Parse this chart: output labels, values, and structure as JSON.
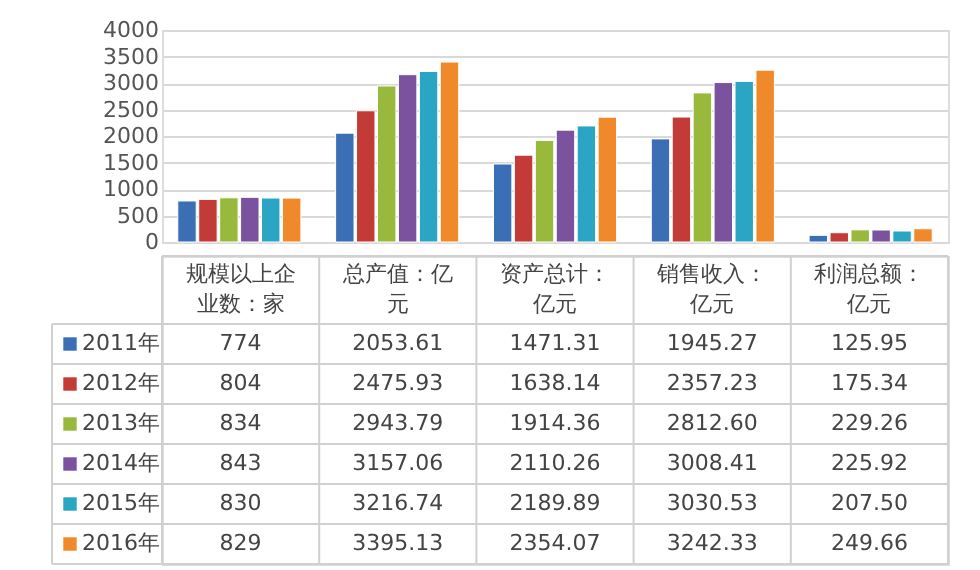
{
  "chart_data": {
    "type": "bar",
    "categories": [
      "规模以上企业数：家",
      "总产值：亿元",
      "资产总计：亿元",
      "销售收入：亿元",
      "利润总额：亿元"
    ],
    "ylim": [
      0,
      4000
    ],
    "yticks": [
      0,
      500,
      1000,
      1500,
      2000,
      2500,
      3000,
      3500,
      4000
    ],
    "grid": "y",
    "legend": "bottom",
    "series": [
      {
        "name": "2011年",
        "color": "#3a6fb5",
        "values": [
          774,
          2053.61,
          1471.31,
          1945.27,
          125.95
        ],
        "value_labels": [
          "774",
          "2053.61",
          "1471.31",
          "1945.27",
          "125.95"
        ]
      },
      {
        "name": "2012年",
        "color": "#c23b36",
        "values": [
          804,
          2475.93,
          1638.14,
          2357.23,
          175.34
        ],
        "value_labels": [
          "804",
          "2475.93",
          "1638.14",
          "2357.23",
          "175.34"
        ]
      },
      {
        "name": "2013年",
        "color": "#98b93c",
        "values": [
          834,
          2943.79,
          1914.36,
          2812.6,
          229.26
        ],
        "value_labels": [
          "834",
          "2943.79",
          "1914.36",
          "2812.60",
          "229.26"
        ]
      },
      {
        "name": "2014年",
        "color": "#7a529e",
        "values": [
          843,
          3157.06,
          2110.26,
          3008.41,
          225.92
        ],
        "value_labels": [
          "843",
          "3157.06",
          "2110.26",
          "3008.41",
          "225.92"
        ]
      },
      {
        "name": "2015年",
        "color": "#2aa5c4",
        "values": [
          830,
          3216.74,
          2189.89,
          3030.53,
          207.5
        ],
        "value_labels": [
          "830",
          "3216.74",
          "2189.89",
          "3030.53",
          "207.50"
        ]
      },
      {
        "name": "2016年",
        "color": "#f0892a",
        "values": [
          829,
          3395.13,
          2354.07,
          3242.33,
          249.66
        ],
        "value_labels": [
          "829",
          "3395.13",
          "2354.07",
          "3242.33",
          "249.66"
        ]
      }
    ]
  }
}
